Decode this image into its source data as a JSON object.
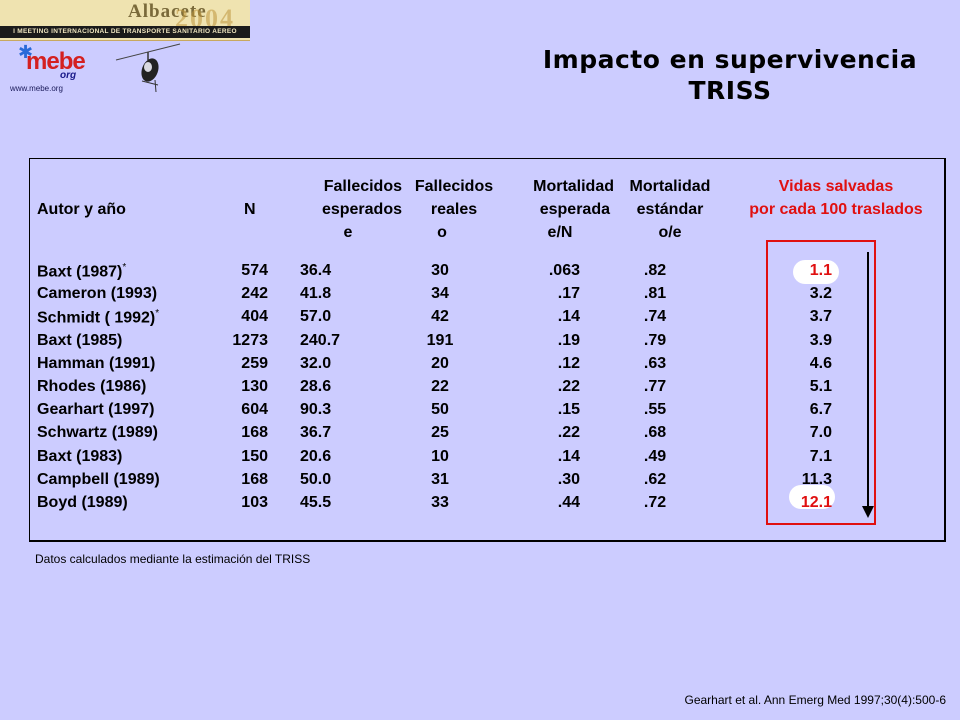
{
  "banner": {
    "city": "Albacete",
    "year": "2004",
    "meeting": "I MEETING INTERNACIONAL DE TRANSPORTE SANITARIO AEREO"
  },
  "logo": {
    "name": "mebe",
    "suffix": "org",
    "url": "www.mebe.org"
  },
  "title": {
    "line1": "Impacto en supervivencia",
    "line2": "TRISS"
  },
  "table": {
    "headers": {
      "author": "Autor y año",
      "n": "N",
      "expected": [
        "Fallecidos",
        "esperados",
        "e"
      ],
      "real": [
        "Fallecidos",
        "reales",
        "o"
      ],
      "exp_mortality": [
        "Mortalidad",
        "esperada",
        "e/N"
      ],
      "std_mortality": [
        "Mortalidad",
        "estándar",
        "o/e"
      ],
      "lives_saved": [
        "Vidas salvadas",
        "por cada 100 traslados"
      ]
    },
    "rows": [
      {
        "author": "Baxt (1987)",
        "mark": "*",
        "n": "574",
        "e": "36.4",
        "o": "30",
        "en": ".063",
        "oe": ".82",
        "lives": "1.1"
      },
      {
        "author": "Cameron (1993)",
        "mark": "",
        "n": "242",
        "e": "41.8",
        "o": "34",
        "en": ".17",
        "oe": ".81",
        "lives": "3.2"
      },
      {
        "author": "Schmidt ( 1992)",
        "mark": "*",
        "n": "404",
        "e": "57.0",
        "o": "42",
        "en": ".14",
        "oe": ".74",
        "lives": "3.7"
      },
      {
        "author": "Baxt (1985)",
        "mark": "",
        "n": "1273",
        "e": "240.7",
        "o": "191",
        "en": ".19",
        "oe": ".79",
        "lives": "3.9"
      },
      {
        "author": "Hamman (1991)",
        "mark": "",
        "n": "259",
        "e": "32.0",
        "o": "20",
        "en": ".12",
        "oe": ".63",
        "lives": "4.6"
      },
      {
        "author": "Rhodes (1986)",
        "mark": "",
        "n": "130",
        "e": "28.6",
        "o": "22",
        "en": ".22",
        "oe": ".77",
        "lives": "5.1"
      },
      {
        "author": "Gearhart (1997)",
        "mark": "",
        "n": "604",
        "e": "90.3",
        "o": "50",
        "en": ".15",
        "oe": ".55",
        "lives": "6.7"
      },
      {
        "author": "Schwartz (1989)",
        "mark": "",
        "n": "168",
        "e": "36.7",
        "o": "25",
        "en": ".22",
        "oe": ".68",
        "lives": "7.0"
      },
      {
        "author": "Baxt (1983)",
        "mark": "",
        "n": "150",
        "e": "20.6",
        "o": "10",
        "en": ".14",
        "oe": ".49",
        "lives": "7.1"
      },
      {
        "author": "Campbell (1989)",
        "mark": "",
        "n": "168",
        "e": "50.0",
        "o": "31",
        "en": ".30",
        "oe": ".62",
        "lives": "11.3"
      },
      {
        "author": "Boyd (1989)",
        "mark": "",
        "n": "103",
        "e": "45.5",
        "o": "33",
        "en": ".44",
        "oe": ".72",
        "lives": "12.1"
      }
    ],
    "highlighted_rows": [
      0,
      10
    ]
  },
  "note": "Datos calculados mediante la estimación del TRISS",
  "citation": "Gearhart   et al. Ann Emerg Med 1997;30(4):500-6",
  "colors": {
    "background": "#ccccff",
    "accent": "#e01010",
    "text": "#000000"
  }
}
